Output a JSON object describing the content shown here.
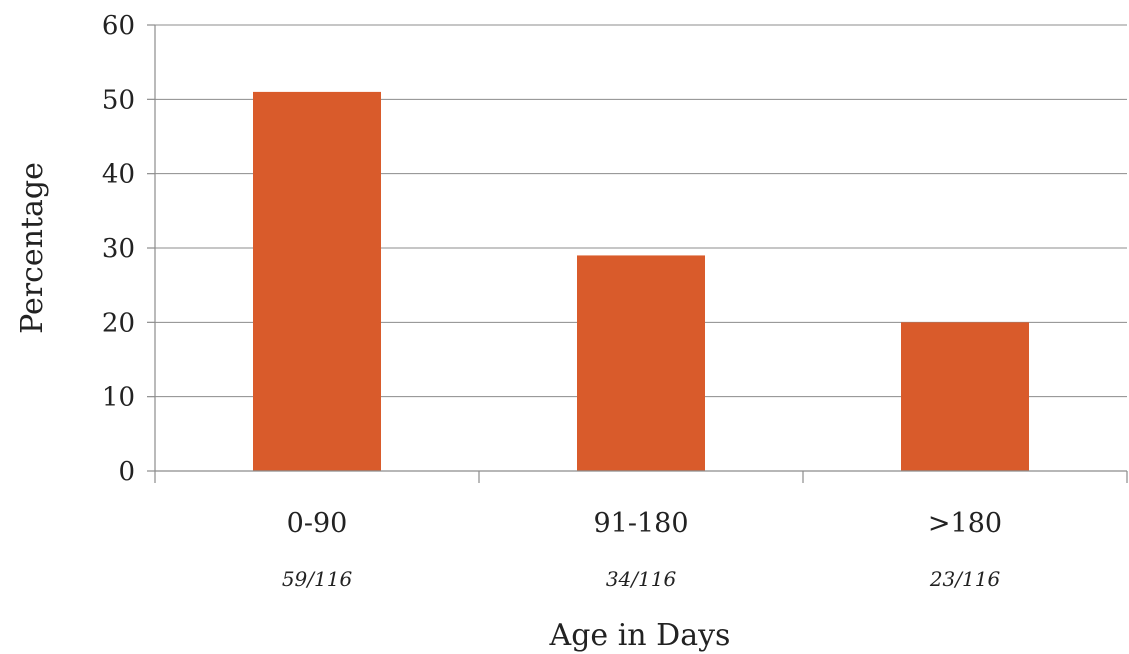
{
  "chart_data": {
    "type": "bar",
    "categories": [
      "0-90",
      "91-180",
      ">180"
    ],
    "subcategory_labels": [
      "59/116",
      "34/116",
      "23/116"
    ],
    "values": [
      51,
      29,
      20
    ],
    "title": "",
    "xlabel": "Age in Days",
    "ylabel": "Percentage",
    "ylim": [
      0,
      60
    ],
    "yticks": [
      "0",
      "10",
      "20",
      "30",
      "40",
      "50",
      "60"
    ],
    "grid": true,
    "legend": "none",
    "bar_color": "#d95b2b"
  }
}
